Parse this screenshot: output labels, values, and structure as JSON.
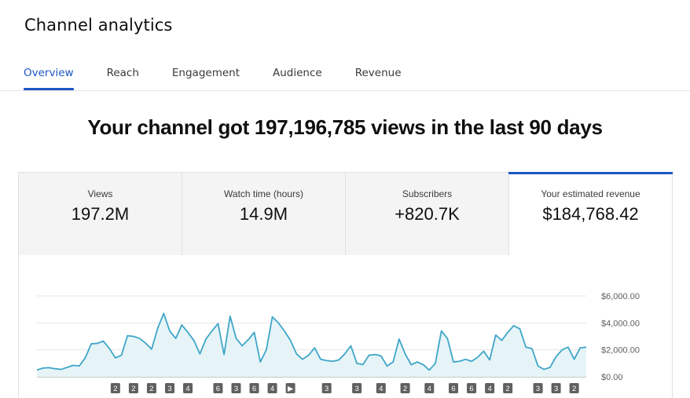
{
  "header": {
    "title": "Channel analytics"
  },
  "tabs": [
    {
      "label": "Overview",
      "active": true
    },
    {
      "label": "Reach",
      "active": false
    },
    {
      "label": "Engagement",
      "active": false
    },
    {
      "label": "Audience",
      "active": false
    },
    {
      "label": "Revenue",
      "active": false
    }
  ],
  "headline": "Your channel got 197,196,785 views in the last 90 days",
  "cards": [
    {
      "label": "Views",
      "value": "197.2M",
      "selected": false
    },
    {
      "label": "Watch time (hours)",
      "value": "14.9M",
      "selected": false
    },
    {
      "label": "Subscribers",
      "value": "+820.7K",
      "selected": false
    },
    {
      "label": "Your estimated revenue",
      "value": "$184,768.42",
      "selected": true
    }
  ],
  "colors": {
    "accent": "#1a56c4",
    "line": "#3ea6c8",
    "area": "#e6f4f8",
    "marker": "#606060"
  },
  "chart_data": {
    "type": "area",
    "metric": "Your estimated revenue",
    "y_ticks": [
      "$0.00",
      "$2,000.00",
      "$4,000.00",
      "$6,000.00"
    ],
    "ylim": [
      0,
      6000
    ],
    "grid": true,
    "y_axis_side": "right",
    "values": [
      500,
      650,
      680,
      600,
      550,
      700,
      850,
      800,
      1400,
      2450,
      2480,
      2650,
      2100,
      1400,
      1600,
      3050,
      3000,
      2850,
      2500,
      2050,
      3600,
      4700,
      3400,
      2850,
      3850,
      3300,
      2700,
      1700,
      2800,
      3400,
      3950,
      1650,
      4500,
      2850,
      2300,
      2750,
      3300,
      1100,
      2000,
      4450,
      4000,
      3400,
      2700,
      1700,
      1300,
      1600,
      2150,
      1300,
      1200,
      1150,
      1250,
      1700,
      2300,
      1000,
      900,
      1600,
      1650,
      1550,
      800,
      1100,
      2800,
      1700,
      900,
      1100,
      900,
      500,
      1000,
      3400,
      2850,
      1100,
      1150,
      1300,
      1150,
      1450,
      1900,
      1250,
      3100,
      2700,
      3300,
      3800,
      3550,
      2200,
      2100,
      800,
      550,
      700,
      1500,
      2000,
      2200,
      1300,
      2150,
      2200
    ],
    "markers": [
      {
        "label": "2",
        "x_index": 13
      },
      {
        "label": "2",
        "x_index": 16
      },
      {
        "label": "2",
        "x_index": 19
      },
      {
        "label": "3",
        "x_index": 22
      },
      {
        "label": "4",
        "x_index": 25
      },
      {
        "label": "6",
        "x_index": 30
      },
      {
        "label": "3",
        "x_index": 33
      },
      {
        "label": "6",
        "x_index": 36
      },
      {
        "label": "4",
        "x_index": 39
      },
      {
        "label": "▶",
        "x_index": 42
      },
      {
        "label": "3",
        "x_index": 48
      },
      {
        "label": "3",
        "x_index": 53
      },
      {
        "label": "4",
        "x_index": 57
      },
      {
        "label": "2",
        "x_index": 61
      },
      {
        "label": "4",
        "x_index": 65
      },
      {
        "label": "6",
        "x_index": 69
      },
      {
        "label": "6",
        "x_index": 72
      },
      {
        "label": "4",
        "x_index": 75
      },
      {
        "label": "2",
        "x_index": 78
      },
      {
        "label": "3",
        "x_index": 83
      },
      {
        "label": "3",
        "x_index": 86
      },
      {
        "label": "2",
        "x_index": 89
      }
    ]
  }
}
